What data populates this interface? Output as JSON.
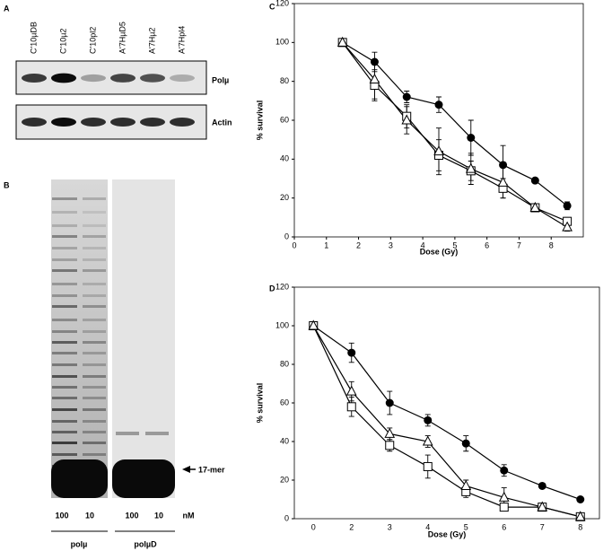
{
  "panel_labels": [
    "A",
    "B",
    "C",
    "D"
  ],
  "panel_a": {
    "lanes": [
      "C'10µDB",
      "C'10µ2",
      "C'10pl2",
      "A'7HµD5",
      "A'7Hµ2",
      "A'7Hpl4"
    ],
    "bands": [
      "Polµ",
      "Actin"
    ]
  },
  "panel_b": {
    "marker": "17-mer",
    "concentrations": [
      100,
      10,
      100,
      10
    ],
    "unit": "nM",
    "enzymes": [
      "polµ",
      "polµD"
    ]
  },
  "chart_data": [
    {
      "type": "line",
      "xlabel": "Dose (Gy)",
      "ylabel": "% survival",
      "x": [
        1.5,
        2.5,
        3.5,
        4.5,
        5.5,
        6.5,
        7.5,
        8.5
      ],
      "xlim": [
        0,
        9
      ],
      "xticks": [
        0,
        1,
        2,
        3,
        4,
        5,
        6,
        7,
        8
      ],
      "ylim": [
        0,
        120
      ],
      "yticks": [
        0,
        20,
        40,
        60,
        80,
        100,
        120
      ],
      "series": [
        {
          "marker": "circle",
          "color": "#000000",
          "values": [
            100,
            90,
            72,
            68,
            51,
            37,
            29,
            16
          ],
          "errors": [
            0,
            5,
            3,
            4,
            9,
            10,
            1,
            2
          ]
        },
        {
          "marker": "square",
          "color": "#000000",
          "values": [
            100,
            78,
            62,
            42,
            34,
            25,
            15,
            8
          ],
          "errors": [
            0,
            8,
            6,
            8,
            5,
            5,
            2,
            2
          ]
        },
        {
          "marker": "triangle",
          "color": "#000000",
          "values": [
            100,
            81,
            60,
            44,
            35,
            28,
            15,
            5
          ],
          "errors": [
            0,
            10,
            7,
            12,
            8,
            8,
            2,
            2
          ]
        }
      ]
    },
    {
      "type": "line",
      "xlabel": "Dose (Gy)",
      "ylabel": "% survival",
      "categories": [
        "0",
        "2",
        "3",
        "4",
        "5",
        "6",
        "7",
        "8"
      ],
      "ylim": [
        0,
        120
      ],
      "yticks": [
        0,
        20,
        40,
        60,
        80,
        100,
        120
      ],
      "series": [
        {
          "marker": "circle",
          "color": "#000000",
          "values": [
            100,
            86,
            60,
            51,
            39,
            25,
            17,
            10
          ],
          "errors": [
            0,
            5,
            6,
            3,
            4,
            3,
            1,
            1
          ]
        },
        {
          "marker": "square",
          "color": "#000000",
          "values": [
            100,
            58,
            38,
            27,
            14,
            6,
            6,
            1
          ],
          "errors": [
            0,
            5,
            3,
            6,
            3,
            1,
            1,
            1
          ]
        },
        {
          "marker": "triangle",
          "color": "#000000",
          "values": [
            100,
            66,
            44,
            40,
            17,
            11,
            6,
            1
          ],
          "errors": [
            0,
            5,
            3,
            3,
            3,
            5,
            1,
            1
          ]
        }
      ]
    }
  ]
}
